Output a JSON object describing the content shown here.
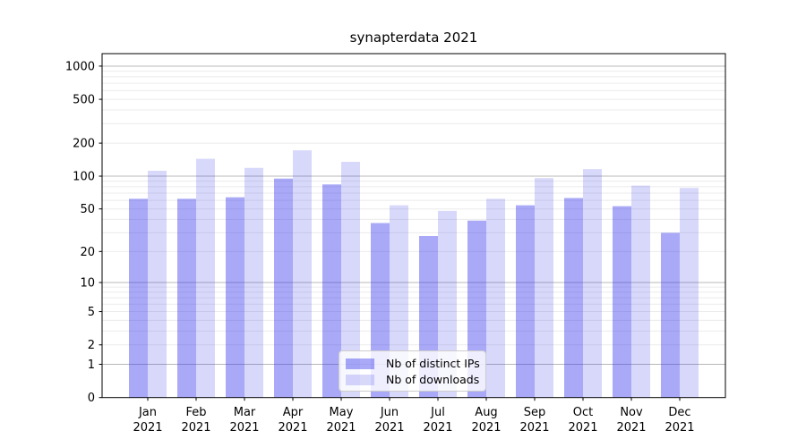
{
  "title": "synapterdata 2021",
  "legend": {
    "position": "lower center",
    "items": [
      {
        "label": "Nb of distinct IPs",
        "color": "rgba(50,50,235,0.42)"
      },
      {
        "label": "Nb of downloads",
        "color": "rgba(50,50,235,0.19)"
      }
    ]
  },
  "colors": {
    "background": "#ffffff",
    "bar_distinct_ips": "rgba(50,50,235,0.42)",
    "bar_downloads": "rgba(50,50,235,0.19)",
    "major_grid": "#b8b8b8",
    "minor_grid": "#ebebeb",
    "spine": "#000000",
    "text": "#000000"
  },
  "chart_data": {
    "type": "bar",
    "title": "synapterdata 2021",
    "categories": [
      "Jan",
      "Feb",
      "Mar",
      "Apr",
      "May",
      "Jun",
      "Jul",
      "Aug",
      "Sep",
      "Oct",
      "Nov",
      "Dec"
    ],
    "x_tick_year": "2021",
    "series": [
      {
        "name": "Nb of distinct IPs",
        "values": [
          62,
          62,
          64,
          95,
          84,
          37,
          28,
          39,
          54,
          63,
          53,
          30
        ]
      },
      {
        "name": "Nb of downloads",
        "values": [
          112,
          144,
          119,
          172,
          135,
          54,
          48,
          62,
          96,
          116,
          82,
          78
        ]
      }
    ],
    "xlabel": "",
    "ylabel": "",
    "y_scale": "log10(1+v)",
    "y_ticks": [
      0,
      1,
      2,
      5,
      10,
      20,
      50,
      100,
      200,
      500,
      1000
    ],
    "y_major_grid": [
      1,
      10,
      100,
      1000
    ],
    "y_minor_grid": [
      2,
      3,
      4,
      5,
      6,
      7,
      8,
      9,
      20,
      30,
      40,
      50,
      60,
      70,
      80,
      90,
      200,
      300,
      400,
      500,
      600,
      700,
      800,
      900
    ],
    "ylim": [
      0,
      1290
    ],
    "grid": "both",
    "legend_position": "lower center"
  }
}
